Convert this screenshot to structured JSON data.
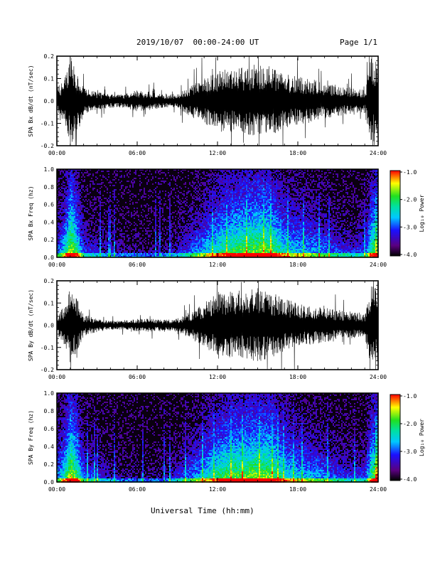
{
  "header": {
    "title": "2019/10/07  00:00-24:00 UT",
    "page": "Page 1/1"
  },
  "footer": {
    "xlabel": "Universal Time (hh:mm)"
  },
  "chart_data": [
    {
      "type": "line",
      "ylabel": "SPA Bx dB/dt (nT/sec)",
      "xlim": [
        "00:00",
        "24:00"
      ],
      "xticks": [
        "00:00",
        "06:00",
        "12:00",
        "18:00",
        "24:00"
      ],
      "ylim": [
        -0.2,
        0.2
      ],
      "yticks": [
        "-0.2",
        "-0.1",
        "0.0",
        "0.1",
        "0.2"
      ],
      "series": [
        {
          "hours": [
            0,
            0.5,
            1,
            1.5,
            2,
            3,
            4,
            5,
            6,
            7,
            8,
            9,
            10,
            11,
            12,
            13,
            14,
            15,
            16,
            17,
            18,
            19,
            20,
            21,
            22,
            23,
            23.5,
            24
          ],
          "amplitude": [
            0.06,
            0.09,
            0.2,
            0.15,
            0.06,
            0.04,
            0.03,
            0.03,
            0.05,
            0.04,
            0.03,
            0.03,
            0.07,
            0.1,
            0.14,
            0.14,
            0.15,
            0.17,
            0.16,
            0.12,
            0.11,
            0.1,
            0.08,
            0.07,
            0.06,
            0.05,
            0.2,
            0.2
          ]
        }
      ]
    },
    {
      "type": "heatmap",
      "ylabel": "SPA Bx Freq (hz)",
      "xlim": [
        "00:00",
        "24:00"
      ],
      "xticks": [
        "00:00",
        "06:00",
        "12:00",
        "18:00",
        "24:00"
      ],
      "ylim": [
        0.0,
        1.0
      ],
      "yticks": [
        "0.0",
        "0.2",
        "0.4",
        "0.6",
        "0.8",
        "1.0"
      ],
      "colorbar": {
        "label": "Log₁₀ Power",
        "range": [
          -4.0,
          -1.0
        ],
        "ticks": [
          "-1.0",
          "-2.0",
          "-3.0",
          "-4.0"
        ]
      },
      "activity": {
        "hours": [
          0,
          0.5,
          1,
          1.5,
          2,
          3,
          4,
          5,
          6,
          7,
          8,
          9,
          10,
          11,
          12,
          13,
          14,
          15,
          16,
          17,
          18,
          19,
          20,
          21,
          22,
          23,
          23.5,
          24
        ],
        "level": [
          0.4,
          0.6,
          1.0,
          0.7,
          0.35,
          0.25,
          0.2,
          0.15,
          0.15,
          0.12,
          0.15,
          0.25,
          0.4,
          0.55,
          0.7,
          0.8,
          0.85,
          0.9,
          0.85,
          0.65,
          0.55,
          0.5,
          0.45,
          0.35,
          0.3,
          0.35,
          0.8,
          0.9
        ]
      }
    },
    {
      "type": "line",
      "ylabel": "SPA By dB/dt (nT/sec)",
      "xlim": [
        "00:00",
        "24:00"
      ],
      "xticks": [
        "00:00",
        "06:00",
        "12:00",
        "18:00",
        "24:00"
      ],
      "ylim": [
        -0.2,
        0.2
      ],
      "yticks": [
        "-0.2",
        "-0.1",
        "0.0",
        "0.1",
        "0.2"
      ],
      "series": [
        {
          "hours": [
            0,
            0.5,
            1,
            1.5,
            2,
            3,
            4,
            5,
            6,
            7,
            8,
            9,
            10,
            11,
            12,
            13,
            14,
            15,
            16,
            17,
            18,
            19,
            20,
            21,
            22,
            23,
            23.5,
            24
          ],
          "amplitude": [
            0.05,
            0.08,
            0.18,
            0.12,
            0.05,
            0.03,
            0.02,
            0.02,
            0.03,
            0.03,
            0.025,
            0.03,
            0.06,
            0.1,
            0.15,
            0.16,
            0.15,
            0.17,
            0.15,
            0.12,
            0.1,
            0.09,
            0.08,
            0.07,
            0.06,
            0.05,
            0.2,
            0.2
          ]
        }
      ]
    },
    {
      "type": "heatmap",
      "ylabel": "SPA By Freq (hz)",
      "xlim": [
        "00:00",
        "24:00"
      ],
      "xticks": [
        "00:00",
        "06:00",
        "12:00",
        "18:00",
        "24:00"
      ],
      "ylim": [
        0.0,
        1.0
      ],
      "yticks": [
        "0.0",
        "0.2",
        "0.4",
        "0.6",
        "0.8",
        "1.0"
      ],
      "colorbar": {
        "label": "Log₁₀ Power",
        "range": [
          -4.0,
          -1.0
        ],
        "ticks": [
          "-1.0",
          "-2.0",
          "-3.0",
          "-4.0"
        ]
      },
      "activity": {
        "hours": [
          0,
          0.5,
          1,
          1.5,
          2,
          3,
          4,
          5,
          6,
          7,
          8,
          9,
          10,
          11,
          12,
          13,
          14,
          15,
          16,
          17,
          18,
          19,
          20,
          21,
          22,
          23,
          23.5,
          24
        ],
        "level": [
          0.45,
          0.65,
          1.0,
          0.75,
          0.4,
          0.3,
          0.2,
          0.15,
          0.15,
          0.12,
          0.15,
          0.3,
          0.45,
          0.6,
          0.75,
          0.85,
          0.85,
          0.9,
          0.85,
          0.65,
          0.55,
          0.5,
          0.45,
          0.35,
          0.3,
          0.35,
          0.8,
          0.9
        ]
      }
    }
  ]
}
